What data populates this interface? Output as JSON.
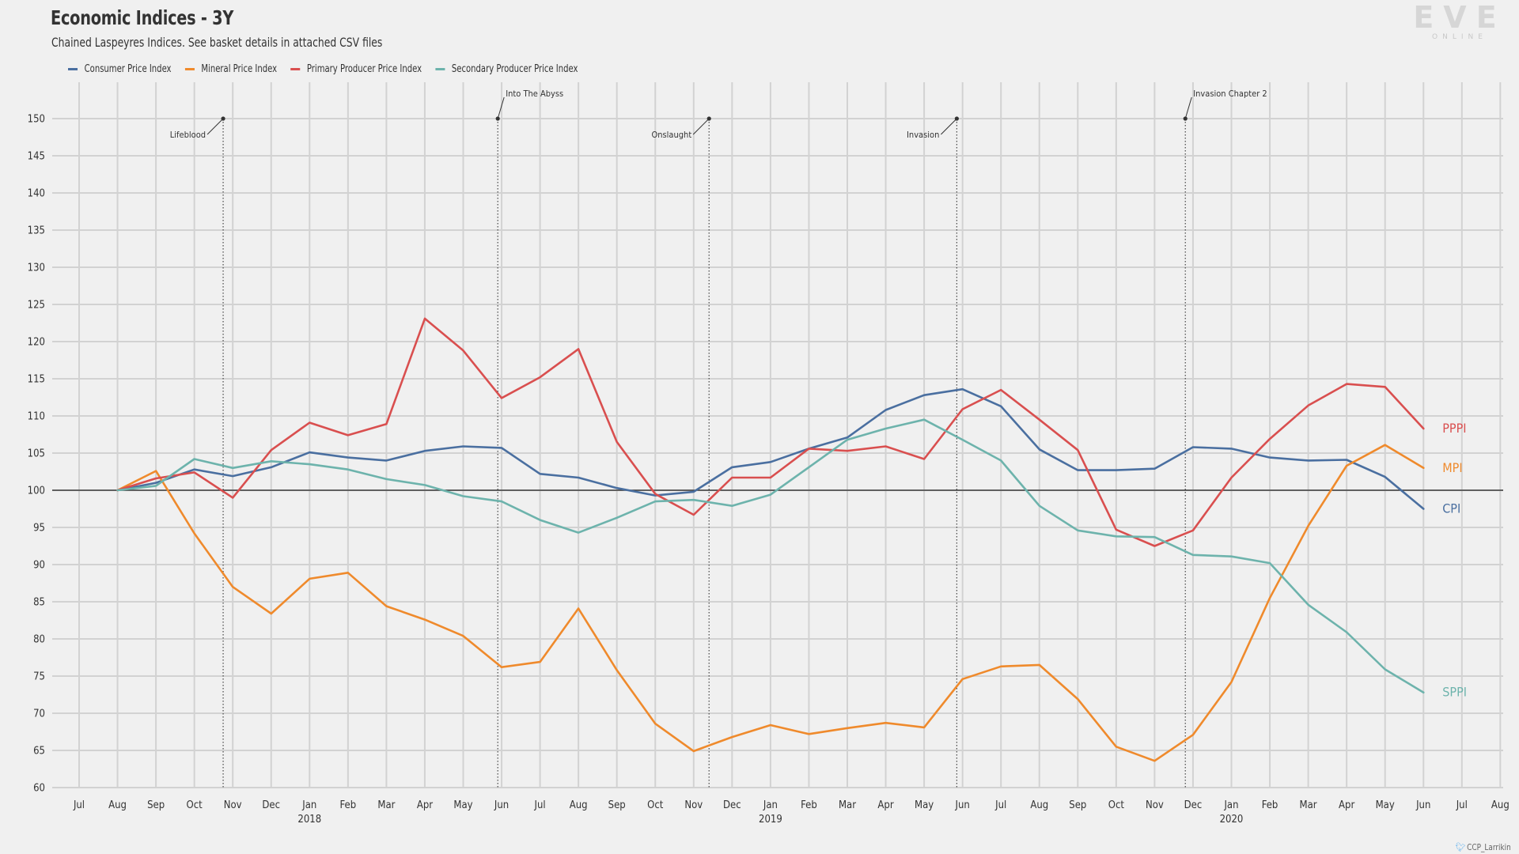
{
  "title": "Economic Indices - 3Y",
  "subtitle": "Chained Laspeyres Indices. See basket details in attached CSV files",
  "logo": {
    "text": "EVE",
    "subtext": "ONLINE"
  },
  "credit": "CCP_Larrikin",
  "chart_data": {
    "type": "line",
    "title": "Economic Indices - 3Y",
    "xlabel": "",
    "ylabel": "",
    "ylim": [
      60,
      153
    ],
    "yticks": [
      60,
      65,
      70,
      75,
      80,
      85,
      90,
      95,
      100,
      105,
      110,
      115,
      120,
      125,
      130,
      135,
      140,
      145,
      150
    ],
    "reference_line": 100,
    "grid": true,
    "legend_position": "top-left",
    "x_axis": {
      "months": [
        "Jul",
        "Aug",
        "Sep",
        "Oct",
        "Nov",
        "Dec",
        "Jan",
        "Feb",
        "Mar",
        "Apr",
        "May",
        "Jun",
        "Jul",
        "Aug",
        "Sep",
        "Oct",
        "Nov",
        "Dec",
        "Jan",
        "Feb",
        "Mar",
        "Apr",
        "May",
        "Jun",
        "Jul",
        "Aug",
        "Sep",
        "Oct",
        "Nov",
        "Dec",
        "Jan",
        "Feb",
        "Mar",
        "Apr",
        "May",
        "Jun",
        "Jul",
        "Aug"
      ],
      "years": [
        {
          "label": "2018",
          "index": 6
        },
        {
          "label": "2019",
          "index": 18
        },
        {
          "label": "2020",
          "index": 30
        }
      ]
    },
    "series": [
      {
        "name": "Consumer Price Index",
        "short": "CPI",
        "color": "#4a6fa0",
        "start_index": 1,
        "values": [
          100,
          101,
          102.8,
          101.9,
          103.1,
          105.1,
          104.4,
          104,
          105.3,
          105.9,
          105.7,
          102.2,
          101.7,
          100.3,
          99.3,
          99.8,
          103.1,
          103.8,
          105.6,
          107.1,
          110.8,
          112.8,
          113.6,
          111.3,
          105.5,
          102.7,
          102.7,
          102.9,
          105.8,
          105.6,
          104.4,
          104,
          104.1,
          101.8,
          97.5
        ]
      },
      {
        "name": "Mineral Price Index",
        "short": "MPI",
        "color": "#ef8a2c",
        "start_index": 1,
        "values": [
          100,
          102.6,
          94.2,
          87,
          83.4,
          88.1,
          88.9,
          84.4,
          82.6,
          80.4,
          76.2,
          76.9,
          84.1,
          75.8,
          68.6,
          64.9,
          66.8,
          68.4,
          67.2,
          68,
          68.7,
          68.1,
          74.6,
          76.3,
          76.5,
          71.9,
          65.5,
          63.6,
          67.1,
          74.2,
          85.5,
          95.2,
          103.3,
          106.1,
          103
        ]
      },
      {
        "name": "Primary Producer Price Index",
        "short": "PPPI",
        "color": "#d94f4f",
        "start_index": 1,
        "values": [
          100,
          101.6,
          102.4,
          99,
          105.4,
          109.1,
          107.4,
          108.9,
          123.1,
          118.8,
          112.4,
          115.2,
          119,
          106.5,
          99.5,
          96.7,
          101.7,
          101.7,
          105.6,
          105.3,
          105.9,
          104.2,
          110.9,
          113.5,
          109.5,
          105.4,
          94.7,
          92.5,
          94.6,
          101.7,
          106.9,
          111.4,
          114.3,
          113.9,
          108.3
        ]
      },
      {
        "name": "Secondary Producer Price Index",
        "short": "SPPI",
        "color": "#6db3ac",
        "start_index": 1,
        "values": [
          100,
          100.6,
          104.2,
          103,
          103.9,
          103.5,
          102.8,
          101.5,
          100.7,
          99.2,
          98.5,
          96,
          94.3,
          96.3,
          98.5,
          98.7,
          97.9,
          99.4,
          103.1,
          106.8,
          108.3,
          109.5,
          106.8,
          104,
          97.9,
          94.6,
          93.8,
          93.7,
          91.3,
          91.1,
          90.2,
          84.6,
          80.9,
          75.9,
          72.8
        ]
      }
    ],
    "events": [
      {
        "label": "Lifeblood",
        "x": 3.75,
        "side": "left"
      },
      {
        "label": "Into The Abyss",
        "x": 10.9,
        "side": "right"
      },
      {
        "label": "Onslaught",
        "x": 16.4,
        "side": "left"
      },
      {
        "label": "Invasion",
        "x": 22.85,
        "side": "left"
      },
      {
        "label": "Invasion Chapter 2",
        "x": 28.8,
        "side": "right"
      }
    ]
  }
}
